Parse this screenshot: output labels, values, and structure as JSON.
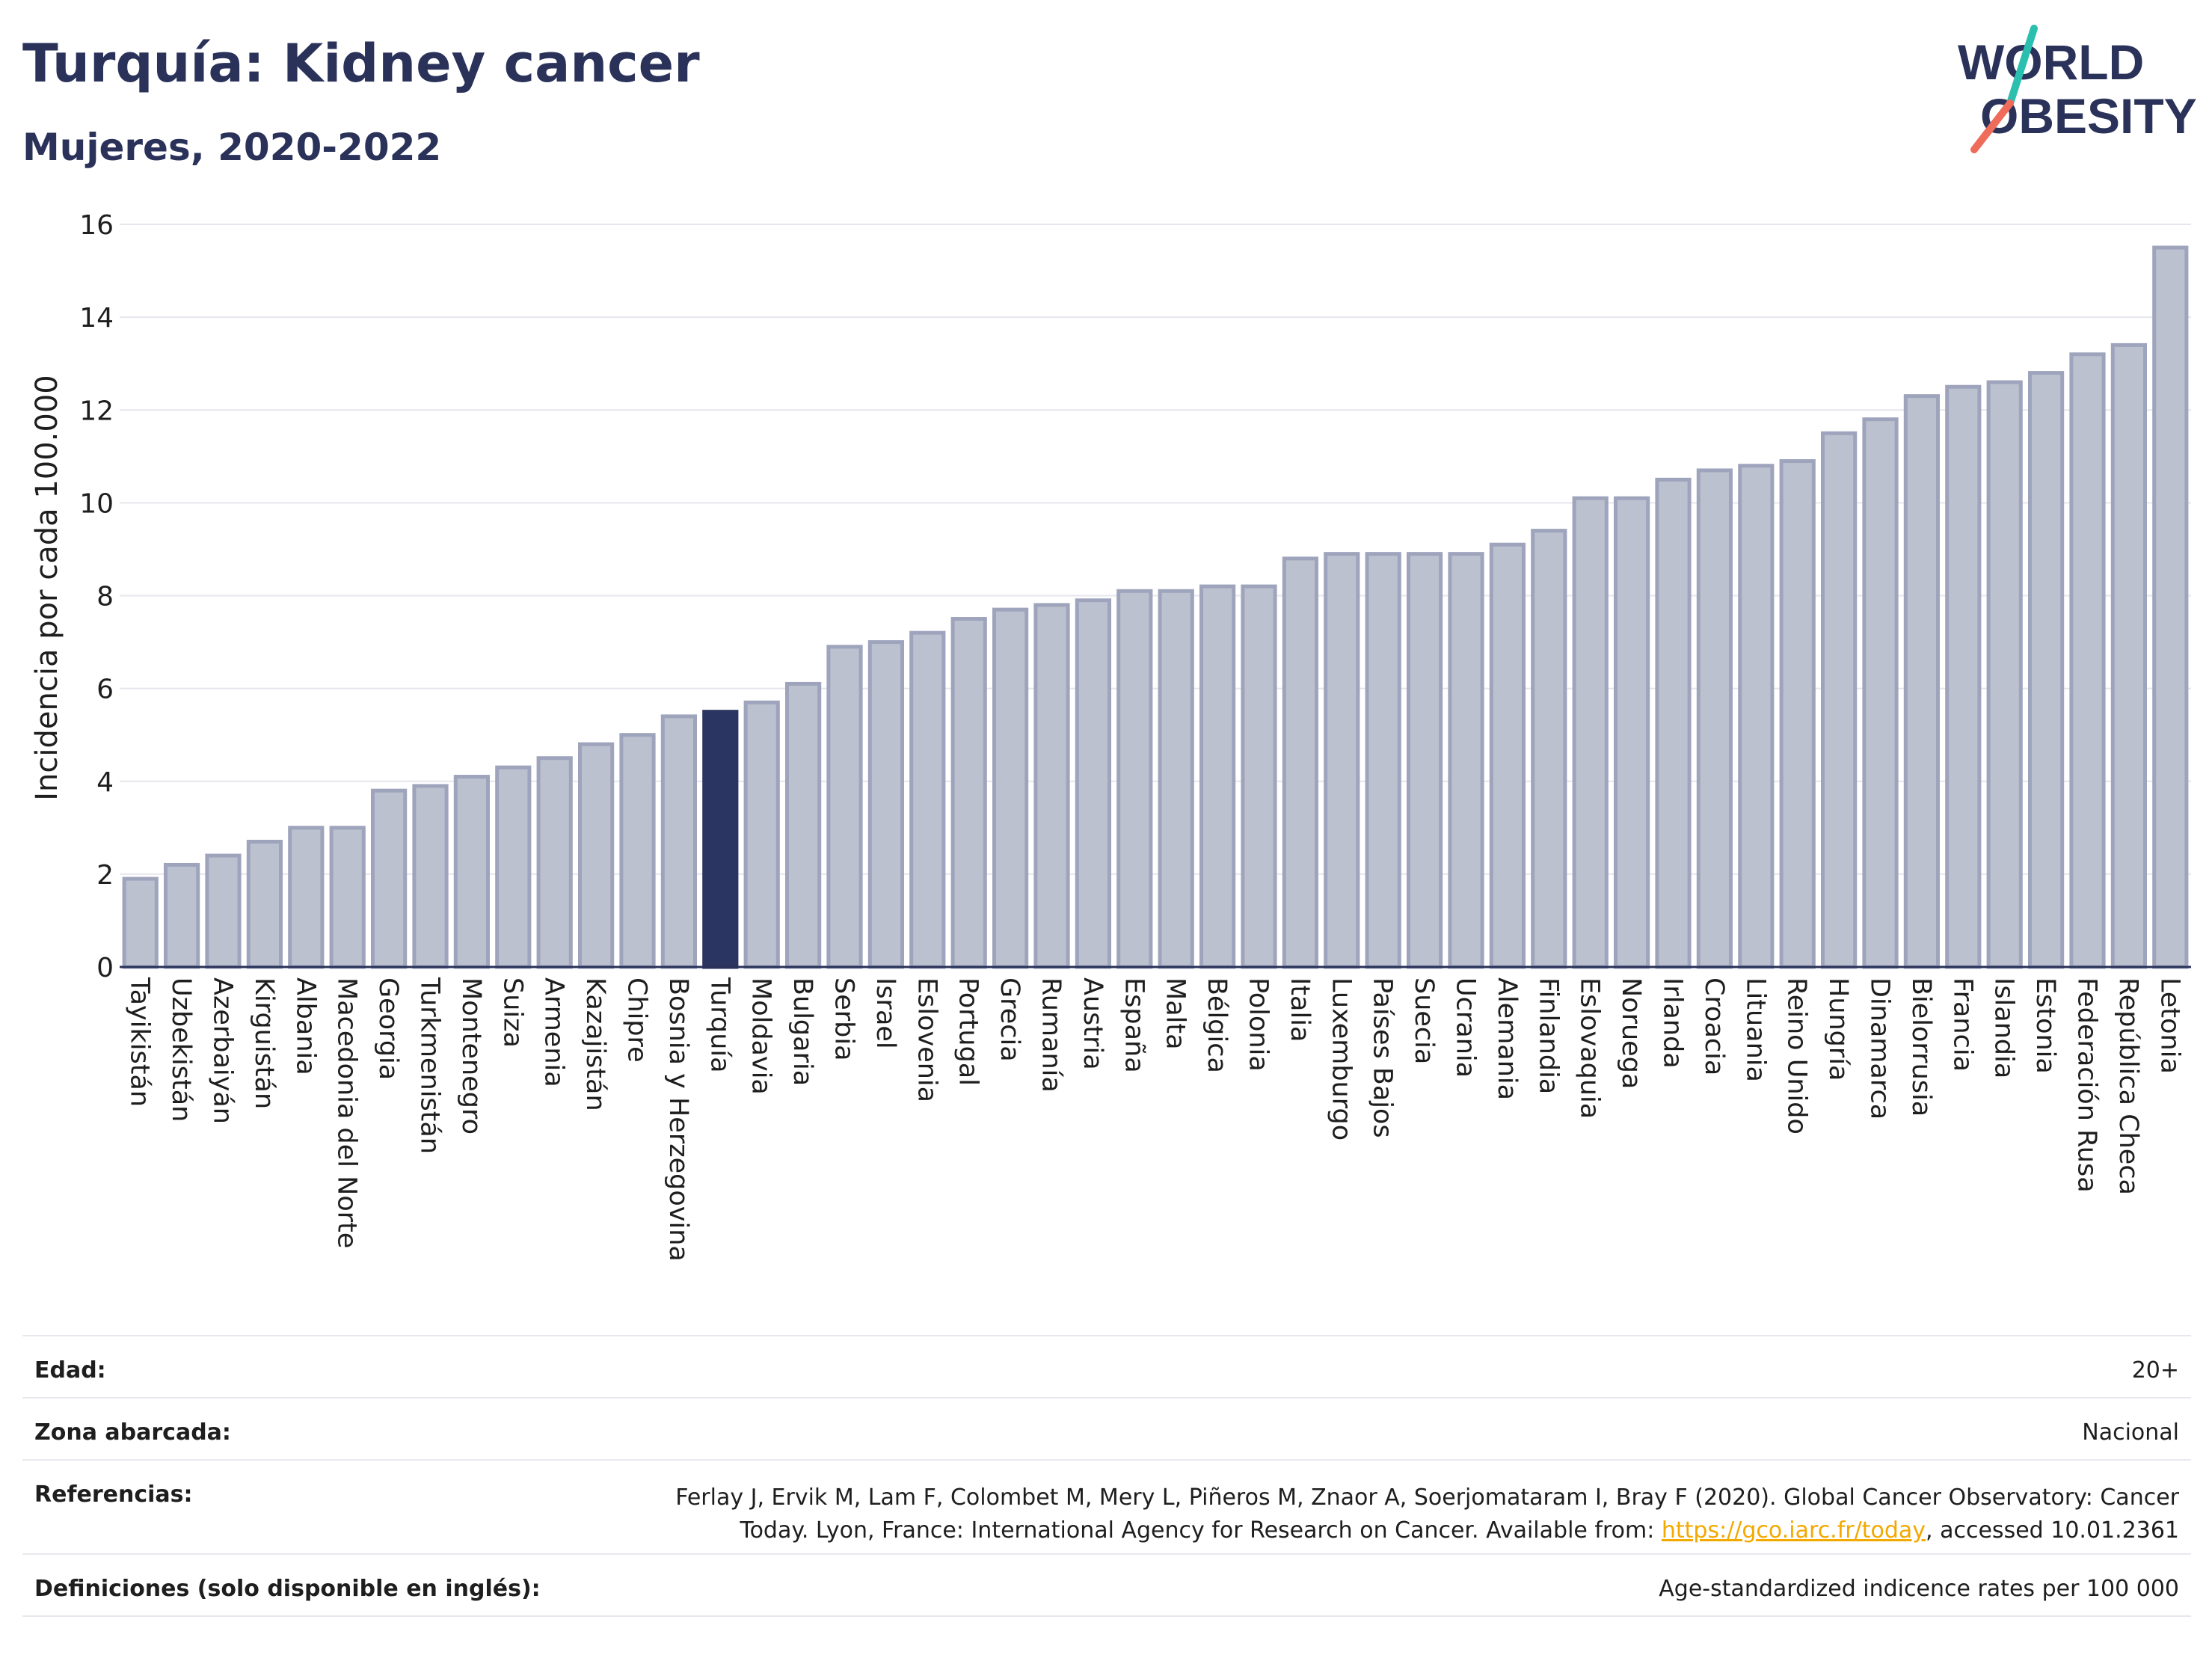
{
  "header": {
    "title": "Turquía: Kidney cancer",
    "subtitle": "Mujeres, 2020-2022"
  },
  "logo": {
    "line1": "WORLD",
    "line2": "OBESITY"
  },
  "colors": {
    "bar": "#bcc1cf",
    "bar_border": "#9ea4bc",
    "highlight": "#2a3561",
    "text": "#2a325a",
    "grid": "#e6e6ee",
    "link": "#f2a900"
  },
  "chart_data": {
    "type": "bar",
    "ylabel": "Incidencia por cada 100.000",
    "ylim": [
      0,
      16
    ],
    "yticks": [
      "0",
      "2",
      "4",
      "6",
      "8",
      "10",
      "12",
      "14",
      "16"
    ],
    "grid": true,
    "highlight": "Turquía",
    "categories": [
      "Tayikistán",
      "Uzbekistán",
      "Azerbaiyán",
      "Kirguistán",
      "Albania",
      "Macedonia del Norte",
      "Georgia",
      "Turkmenistán",
      "Montenegro",
      "Suiza",
      "Armenia",
      "Kazajistán",
      "Chipre",
      "Bosnia y Herzegovina",
      "Turquía",
      "Moldavia",
      "Bulgaria",
      "Serbia",
      "Israel",
      "Eslovenia",
      "Portugal",
      "Grecia",
      "Rumanía",
      "Austria",
      "España",
      "Malta",
      "Bélgica",
      "Polonia",
      "Italia",
      "Luxemburgo",
      "Países Bajos",
      "Suecia",
      "Ucrania",
      "Alemania",
      "Finlandia",
      "Eslovaquia",
      "Noruega",
      "Irlanda",
      "Croacia",
      "Lituania",
      "Reino Unido",
      "Hungría",
      "Dinamarca",
      "Bielorrusia",
      "Francia",
      "Islandia",
      "Estonia",
      "Federación Rusa",
      "República Checa",
      "Letonia"
    ],
    "values": [
      1.9,
      2.2,
      2.4,
      2.7,
      3.0,
      3.0,
      3.8,
      3.9,
      4.1,
      4.3,
      4.5,
      4.8,
      5.0,
      5.4,
      5.5,
      5.7,
      6.1,
      6.9,
      7.0,
      7.2,
      7.5,
      7.7,
      7.8,
      7.9,
      8.1,
      8.1,
      8.2,
      8.2,
      8.8,
      8.9,
      8.9,
      8.9,
      8.9,
      9.1,
      9.4,
      10.1,
      10.1,
      10.5,
      10.7,
      10.8,
      10.9,
      11.5,
      11.8,
      12.3,
      12.5,
      12.6,
      12.8,
      13.2,
      13.4,
      15.5
    ]
  },
  "info": {
    "edad_label": "Edad:",
    "edad_value": "20+",
    "zona_label": "Zona abarcada:",
    "zona_value": "Nacional",
    "ref_label": "Referencias:",
    "ref_line1": "Ferlay J, Ervik M, Lam F, Colombet M, Mery L, Piñeros M, Znaor A, Soerjomataram I, Bray F (2020). Global Cancer Observatory: Cancer",
    "ref_line2_pre": "Today. Lyon, France: International Agency for Research on Cancer. Available from: ",
    "ref_link": "https://gco.iarc.fr/today",
    "ref_line2_post": ", accessed 10.01.2361",
    "def_label": "Definiciones (solo disponible en inglés):",
    "def_value": "Age-standardized indicence rates per 100 000"
  }
}
